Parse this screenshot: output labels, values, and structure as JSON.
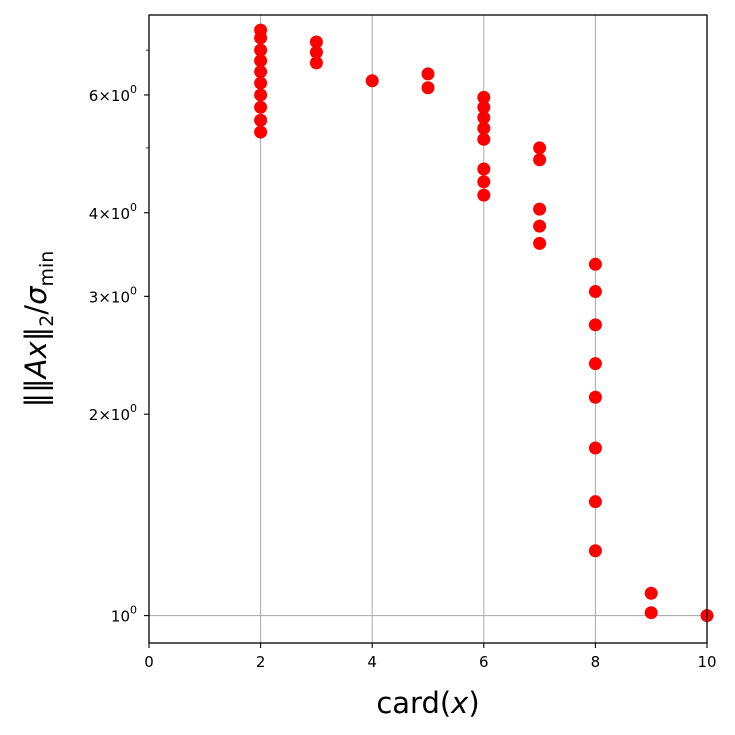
{
  "chart_data": {
    "type": "scatter",
    "title": "",
    "xlabel": "card(x)",
    "ylabel": "‖‖Ax‖₂/σmin",
    "xscale": "linear",
    "yscale": "log",
    "xlim": [
      0,
      10
    ],
    "ylim": [
      0.91,
      7.9
    ],
    "xticks": [
      0,
      2,
      4,
      6,
      8,
      10
    ],
    "xtick_labels": [
      "0",
      "2",
      "4",
      "6",
      "8",
      "10"
    ],
    "yticks": [
      1,
      2,
      3,
      4,
      6
    ],
    "ytick_labels": [
      {
        "base": "10",
        "exp": "0"
      },
      {
        "mant": "2",
        "base": "10",
        "exp": "0"
      },
      {
        "mant": "3",
        "base": "10",
        "exp": "0"
      },
      {
        "mant": "4",
        "base": "10",
        "exp": "0"
      },
      {
        "mant": "6",
        "base": "10",
        "exp": "0"
      }
    ],
    "grid": true,
    "marker_color": "#ff0000",
    "points": [
      {
        "x": 2,
        "y": 7.5
      },
      {
        "x": 2,
        "y": 7.3
      },
      {
        "x": 2,
        "y": 7.0
      },
      {
        "x": 2,
        "y": 6.75
      },
      {
        "x": 2,
        "y": 6.5
      },
      {
        "x": 2,
        "y": 6.25
      },
      {
        "x": 2,
        "y": 6.0
      },
      {
        "x": 2,
        "y": 5.75
      },
      {
        "x": 2,
        "y": 5.5
      },
      {
        "x": 2,
        "y": 5.28
      },
      {
        "x": 3,
        "y": 7.2
      },
      {
        "x": 3,
        "y": 6.95
      },
      {
        "x": 3,
        "y": 6.7
      },
      {
        "x": 4,
        "y": 6.3
      },
      {
        "x": 5,
        "y": 6.45
      },
      {
        "x": 5,
        "y": 6.15
      },
      {
        "x": 6,
        "y": 5.95
      },
      {
        "x": 6,
        "y": 5.75
      },
      {
        "x": 6,
        "y": 5.55
      },
      {
        "x": 6,
        "y": 5.35
      },
      {
        "x": 6,
        "y": 5.15
      },
      {
        "x": 6,
        "y": 4.65
      },
      {
        "x": 6,
        "y": 4.45
      },
      {
        "x": 6,
        "y": 4.25
      },
      {
        "x": 7,
        "y": 5.0
      },
      {
        "x": 7,
        "y": 4.8
      },
      {
        "x": 7,
        "y": 4.05
      },
      {
        "x": 7,
        "y": 3.82
      },
      {
        "x": 7,
        "y": 3.6
      },
      {
        "x": 8,
        "y": 3.35
      },
      {
        "x": 8,
        "y": 3.05
      },
      {
        "x": 8,
        "y": 2.72
      },
      {
        "x": 8,
        "y": 2.38
      },
      {
        "x": 8,
        "y": 2.12
      },
      {
        "x": 8,
        "y": 1.78
      },
      {
        "x": 8,
        "y": 1.48
      },
      {
        "x": 8,
        "y": 1.25
      },
      {
        "x": 9,
        "y": 1.08
      },
      {
        "x": 9,
        "y": 1.01
      },
      {
        "x": 10,
        "y": 1.0
      }
    ]
  }
}
